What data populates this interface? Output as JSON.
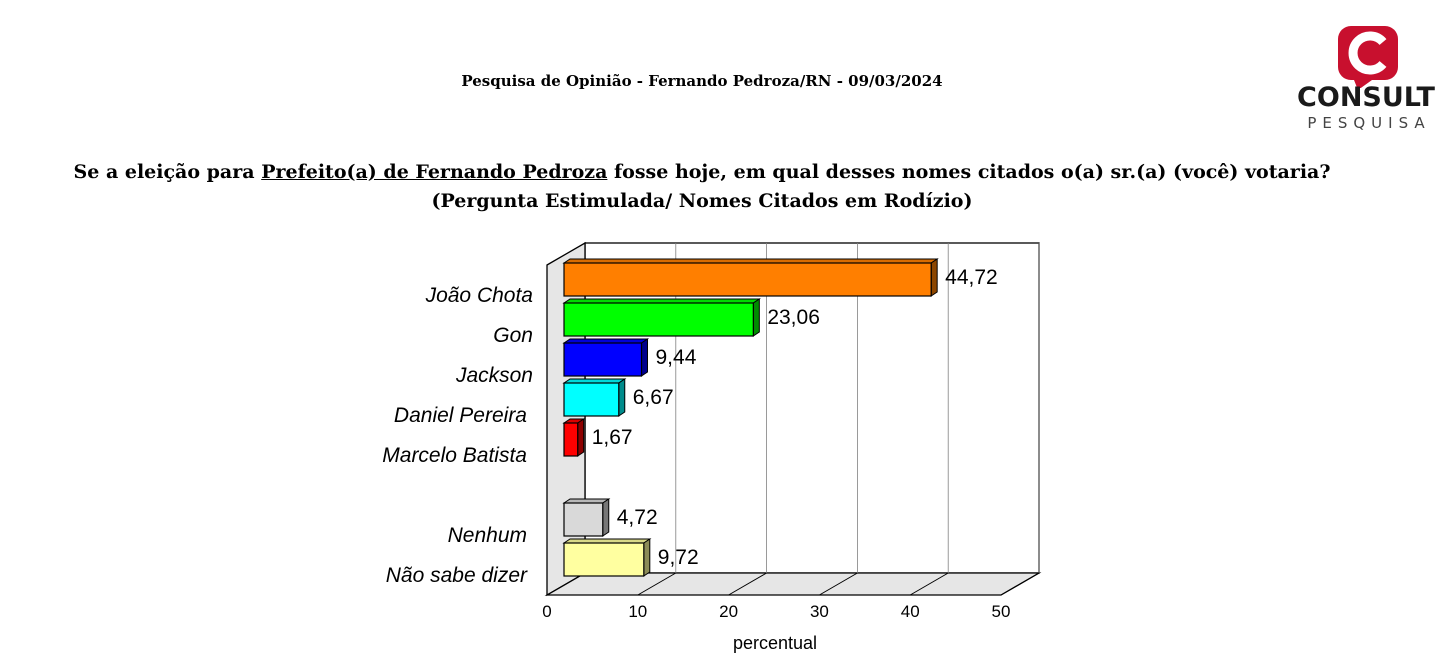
{
  "header": {
    "survey_line": "Pesquisa de Opinião  -  Fernando Pedroza/RN  -  09/03/2024"
  },
  "question": {
    "prefix": "Se a eleição para ",
    "underlined": "Prefeito(a) de Fernando Pedroza",
    "suffix": " fosse hoje, em qual desses  nomes citados o(a) sr.(a) (você) votaria?",
    "subtitle": "(Pergunta Estimulada/ Nomes Citados em Rodízio)"
  },
  "logo": {
    "word": "CONSULT",
    "sub": "PESQUISA",
    "accent_color": "#c8102e"
  },
  "chart_data": {
    "type": "bar",
    "orientation": "horizontal",
    "categories": [
      "João Chota",
      "Gon",
      "Jackson",
      "Daniel Pereira",
      "Marcelo Batista",
      "Nenhum",
      "Não sabe dizer"
    ],
    "values": [
      44.72,
      23.06,
      9.44,
      6.67,
      1.67,
      4.72,
      9.72
    ],
    "value_labels": [
      "44,72",
      "23,06",
      "9,44",
      "6,67",
      "1,67",
      "4,72",
      "9,72"
    ],
    "colors": [
      "#ff7f00",
      "#00ff00",
      "#0000ff",
      "#00ffff",
      "#ff0000",
      "#d9d9d9",
      "#ffffa0"
    ],
    "xlabel": "percentual",
    "xlim": [
      0,
      50
    ],
    "xticks": [
      "0",
      "10",
      "20",
      "30",
      "40",
      "50"
    ],
    "grid": true,
    "style": "3d"
  }
}
